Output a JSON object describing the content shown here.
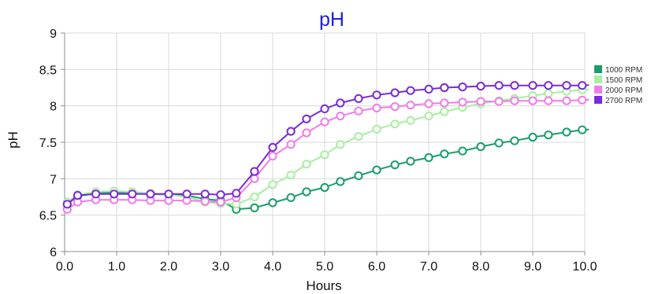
{
  "chart_data": {
    "type": "line",
    "title": "pH",
    "xlabel": "Hours",
    "ylabel": "pH",
    "xlim": [
      0,
      10
    ],
    "ylim": [
      6,
      9
    ],
    "x_ticks": [
      0,
      1,
      2,
      3,
      4,
      5,
      6,
      7,
      8,
      9,
      10
    ],
    "x_tick_labels": [
      "0.0",
      "1.0",
      "2.0",
      "3.0",
      "4.0",
      "5.0",
      "6.0",
      "7.0",
      "8.0",
      "9.0",
      "10.0"
    ],
    "y_ticks": [
      6,
      6.5,
      7,
      7.5,
      8,
      8.5,
      9
    ],
    "y_tick_labels": [
      "6",
      "6.5",
      "7",
      "7.5",
      "8",
      "8.5",
      "9"
    ],
    "grid": true,
    "legend_position": "right",
    "colors": {
      "title": "#1f1fd6",
      "ylabel": "#5b2a7a",
      "grid": "#d9d9d9",
      "axis": "#8c8c8c"
    },
    "series": [
      {
        "name": "1000 RPM",
        "color": "#1a9e6a",
        "x": [
          0.05,
          0.25,
          0.6,
          0.95,
          1.3,
          1.65,
          2.0,
          2.35,
          2.7,
          3.0,
          3.3,
          3.65,
          4.0,
          4.35,
          4.65,
          5.0,
          5.3,
          5.65,
          6.0,
          6.35,
          6.65,
          7.0,
          7.3,
          7.65,
          8.0,
          8.35,
          8.65,
          9.0,
          9.3,
          9.65,
          9.95
        ],
        "y": [
          6.65,
          6.76,
          6.8,
          6.81,
          6.8,
          6.79,
          6.78,
          6.77,
          6.72,
          6.7,
          6.58,
          6.6,
          6.67,
          6.74,
          6.82,
          6.88,
          6.96,
          7.04,
          7.12,
          7.19,
          7.24,
          7.29,
          7.34,
          7.38,
          7.44,
          7.49,
          7.52,
          7.57,
          7.6,
          7.64,
          7.67
        ]
      },
      {
        "name": "1500 RPM",
        "color": "#a8eea0",
        "x": [
          0.05,
          0.25,
          0.6,
          0.95,
          1.3,
          1.65,
          2.0,
          2.35,
          2.7,
          3.0,
          3.3,
          3.65,
          4.0,
          4.35,
          4.65,
          5.0,
          5.3,
          5.65,
          6.0,
          6.35,
          6.65,
          7.0,
          7.3,
          7.65,
          8.0,
          8.35,
          8.65,
          9.0,
          9.3,
          9.65,
          9.95
        ],
        "y": [
          6.68,
          6.78,
          6.82,
          6.83,
          6.82,
          6.8,
          6.78,
          6.75,
          6.68,
          6.66,
          6.65,
          6.75,
          6.92,
          7.05,
          7.2,
          7.33,
          7.47,
          7.58,
          7.68,
          7.75,
          7.8,
          7.86,
          7.92,
          7.98,
          8.03,
          8.07,
          8.1,
          8.14,
          8.17,
          8.2,
          8.22
        ]
      },
      {
        "name": "2000 RPM",
        "color": "#f07ce8",
        "x": [
          0.05,
          0.25,
          0.6,
          0.95,
          1.3,
          1.65,
          2.0,
          2.35,
          2.7,
          3.0,
          3.3,
          3.65,
          4.0,
          4.35,
          4.65,
          5.0,
          5.3,
          5.65,
          6.0,
          6.35,
          6.65,
          7.0,
          7.3,
          7.65,
          8.0,
          8.35,
          8.65,
          9.0,
          9.3,
          9.65,
          9.95
        ],
        "y": [
          6.58,
          6.68,
          6.71,
          6.71,
          6.71,
          6.7,
          6.7,
          6.7,
          6.69,
          6.68,
          6.74,
          7.0,
          7.31,
          7.47,
          7.63,
          7.78,
          7.86,
          7.93,
          7.97,
          7.99,
          8.01,
          8.03,
          8.04,
          8.05,
          8.06,
          8.06,
          8.07,
          8.07,
          8.07,
          8.07,
          8.08
        ]
      },
      {
        "name": "2700 RPM",
        "color": "#7a2bd9",
        "x": [
          0.05,
          0.25,
          0.6,
          0.95,
          1.3,
          1.65,
          2.0,
          2.35,
          2.7,
          3.0,
          3.3,
          3.65,
          4.0,
          4.35,
          4.65,
          5.0,
          5.3,
          5.65,
          6.0,
          6.35,
          6.65,
          7.0,
          7.3,
          7.65,
          8.0,
          8.35,
          8.65,
          9.0,
          9.3,
          9.65,
          9.95
        ],
        "y": [
          6.65,
          6.77,
          6.79,
          6.79,
          6.79,
          6.79,
          6.79,
          6.79,
          6.79,
          6.78,
          6.8,
          7.1,
          7.43,
          7.65,
          7.82,
          7.96,
          8.04,
          8.1,
          8.15,
          8.18,
          8.21,
          8.23,
          8.25,
          8.26,
          8.27,
          8.28,
          8.28,
          8.28,
          8.28,
          8.28,
          8.28
        ]
      }
    ]
  }
}
